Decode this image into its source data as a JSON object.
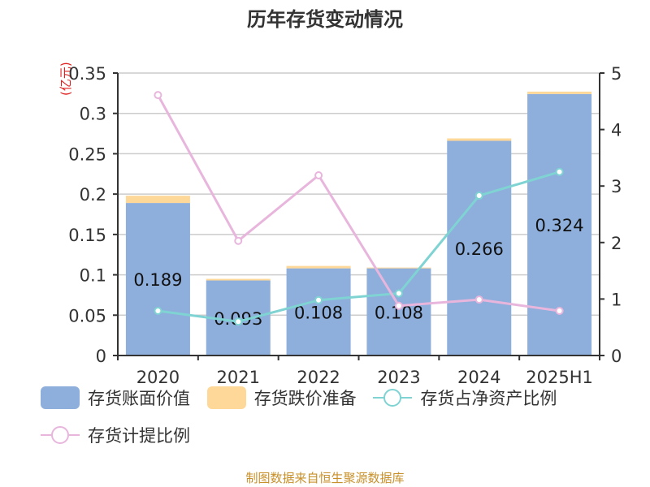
{
  "title": "历年存货变动情况",
  "unit_label": "(亿元)",
  "source": "制图数据来自恒生聚源数据库",
  "colors": {
    "book_value": "#8eaedb",
    "provision": "#fdd898",
    "ratio_net_assets": "#7fd3d3",
    "provision_ratio": "#e8b6dc"
  },
  "legend": [
    {
      "label": "存货账面价值",
      "type": "rect",
      "color": "#8eaedb"
    },
    {
      "label": "存货跌价准备",
      "type": "rect",
      "color": "#fdd898"
    },
    {
      "label": "存货占净资产比例",
      "type": "line",
      "color": "#7fd3d3"
    },
    {
      "label": "存货计提比例",
      "type": "line",
      "color": "#e8b6dc"
    }
  ],
  "chart_data": {
    "type": "bar",
    "title": "历年存货变动情况",
    "categories": [
      "2020",
      "2021",
      "2022",
      "2023",
      "2024",
      "2025H1"
    ],
    "series": [
      {
        "name": "存货账面价值",
        "type": "bar",
        "stack": "inv",
        "axis": "left",
        "values": [
          0.189,
          0.093,
          0.108,
          0.108,
          0.266,
          0.324
        ]
      },
      {
        "name": "存货跌价准备",
        "type": "bar",
        "stack": "inv",
        "axis": "left",
        "values": [
          0.009,
          0.002,
          0.003,
          0.001,
          0.003,
          0.003
        ]
      },
      {
        "name": "存货占净资产比例",
        "type": "line",
        "axis": "right",
        "values": [
          0.79,
          0.6,
          0.98,
          1.1,
          2.83,
          3.25
        ]
      },
      {
        "name": "存货计提比例",
        "type": "line",
        "axis": "right",
        "values": [
          4.61,
          2.03,
          3.19,
          0.88,
          0.99,
          0.79
        ]
      }
    ],
    "data_labels": [
      "0.189",
      "0.093",
      "0.108",
      "0.108",
      "0.266",
      "0.324"
    ],
    "ylabel": "(亿元)",
    "ylim": [
      0,
      0.35
    ],
    "yticks": [
      "0",
      "0.05",
      "0.1",
      "0.15",
      "0.2",
      "0.25",
      "0.3",
      "0.35"
    ],
    "y2lim": [
      0,
      5
    ],
    "y2ticks": [
      "0",
      "1",
      "2",
      "3",
      "4",
      "5"
    ],
    "grid": true,
    "legend_position": "bottom"
  }
}
